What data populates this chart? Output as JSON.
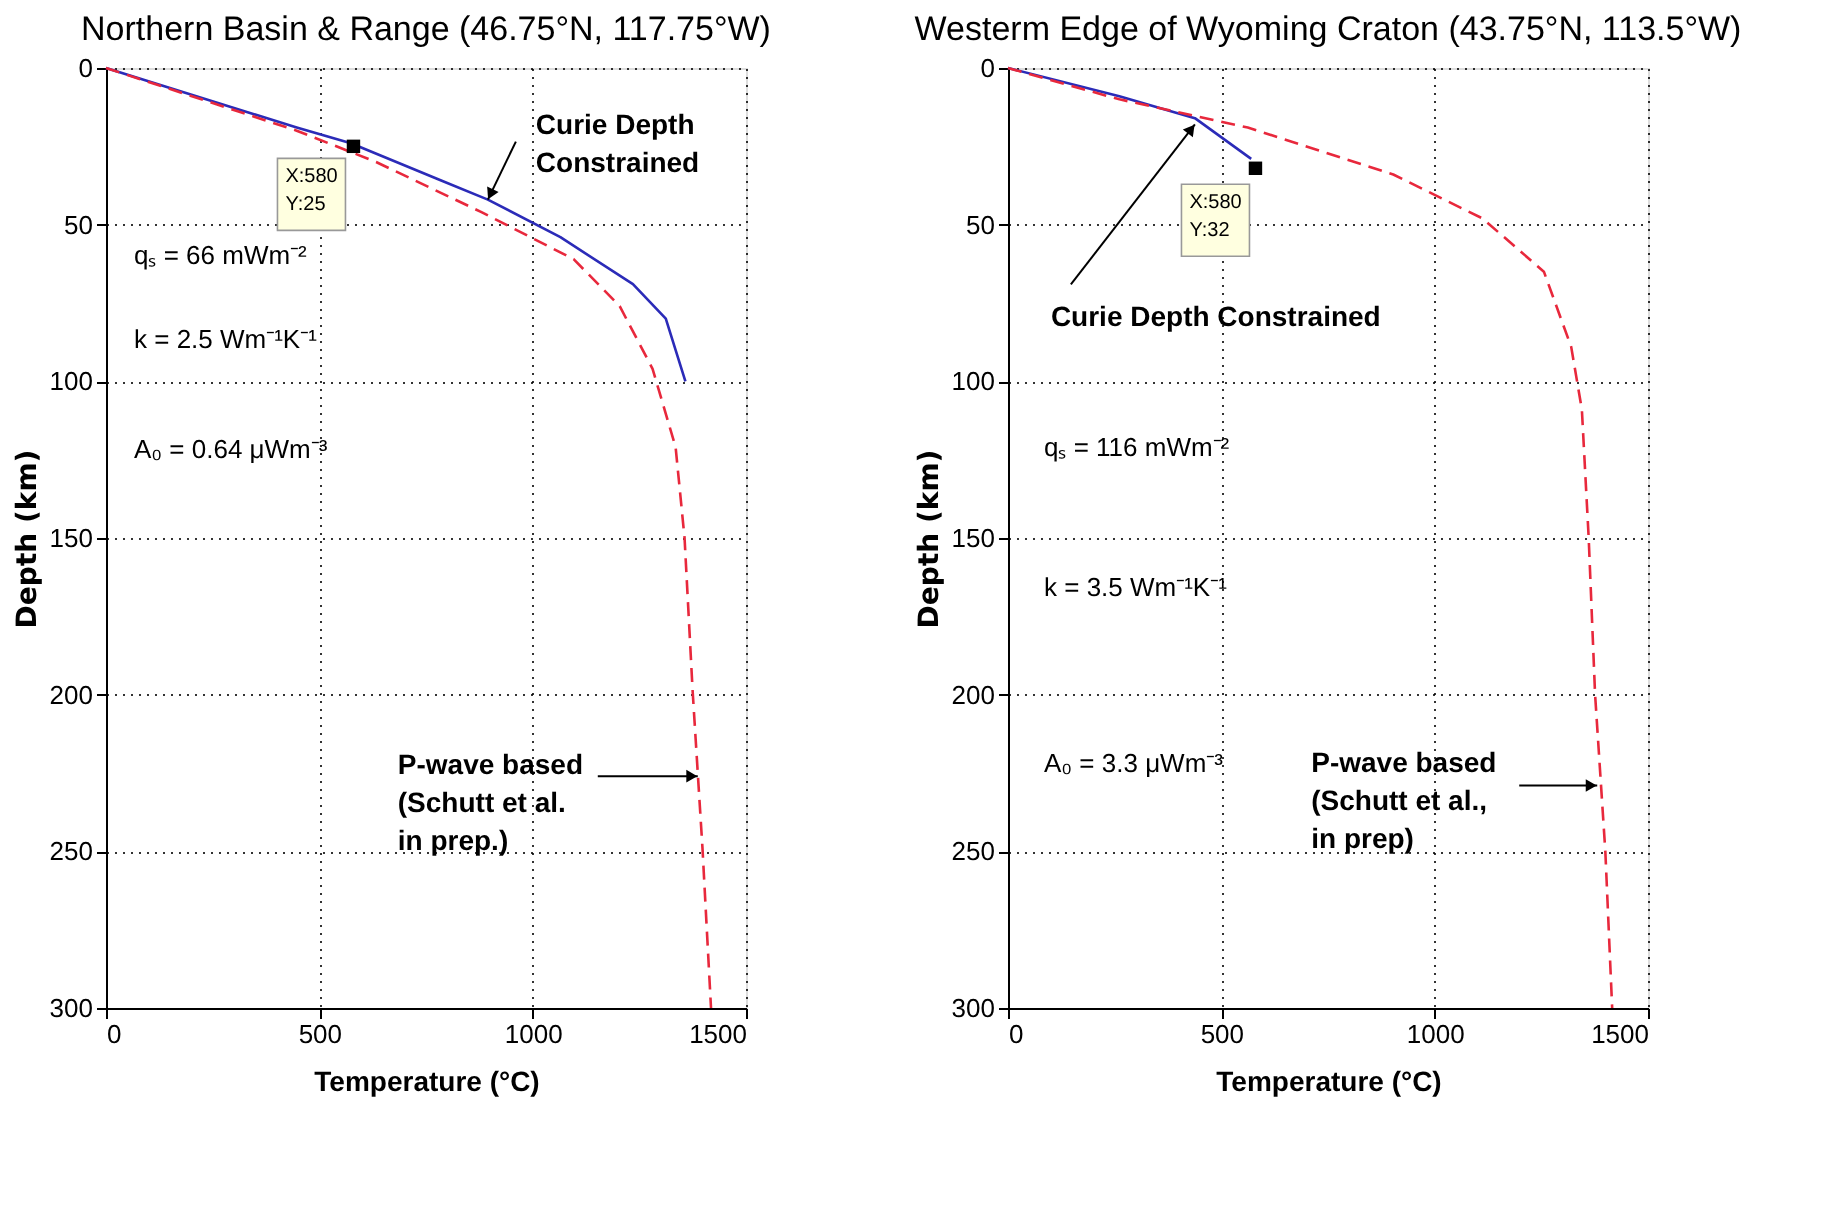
{
  "chart_data": [
    {
      "type": "line",
      "title": "Northern Basin & Range (46.75°N, 117.75°W)",
      "xlabel": "Temperature (°C)",
      "ylabel": "Depth (km)",
      "series": [
        {
          "color": "#2b2bb8",
          "line_style": "solid",
          "x": [
            0,
            447,
            574,
            787,
            895,
            1065,
            1235,
            1312,
            1358
          ],
          "values": [
            0,
            19,
            24,
            36,
            42,
            54,
            69,
            80,
            100
          ]
        },
        {
          "color": "#e8283c",
          "line_style": "dashed",
          "x": [
            0,
            447,
            633,
            880,
            1096,
            1204,
            1281,
            1335,
            1356,
            1375,
            1398,
            1418
          ],
          "values": [
            0,
            20,
            30,
            46,
            61,
            76,
            96,
            121,
            150,
            199,
            249,
            300
          ]
        }
      ],
      "xlim": [
        0,
        1500
      ],
      "ylim": [
        300,
        0
      ],
      "xticks": [
        0,
        500,
        1000,
        1500
      ],
      "yticks": [
        0,
        50,
        100,
        150,
        200,
        250,
        300
      ],
      "grid": true,
      "annotations": [
        {
          "text": "Curie Depth\nConstrained",
          "x": 895,
          "y": 42
        },
        {
          "text": "P-wave based\n(Schutt et al.\n in prep.)",
          "x": 1387,
          "y": 226
        },
        {
          "text": "X:580\nY:25",
          "x": 580,
          "y": 25
        },
        "qₛ = 66 mWm⁻²",
        "k = 2.5 Wm⁻¹K⁻¹",
        "A₀ = 0.64 μWm⁻³"
      ]
    },
    {
      "type": "line",
      "title": "Westerm Edge of Wyoming Craton (43.75°N, 113.5°W)",
      "xlabel": "Temperature (°C)",
      "ylabel": "Depth (km)",
      "series": [
        {
          "color": "#2b2bb8",
          "line_style": "solid",
          "x": [
            0,
            261,
            438,
            570
          ],
          "values": [
            0,
            9,
            16,
            29
          ]
        },
        {
          "color": "#e8283c",
          "line_style": "dashed",
          "x": [
            0,
            261,
            562,
            903,
            1112,
            1256,
            1320,
            1345,
            1361,
            1376,
            1400,
            1416
          ],
          "values": [
            0,
            10,
            19,
            34,
            48,
            65,
            89,
            109,
            150,
            200,
            250,
            300
          ]
        }
      ],
      "xlim": [
        0,
        1500
      ],
      "ylim": [
        300,
        0
      ],
      "xticks": [
        0,
        500,
        1000,
        1500
      ],
      "yticks": [
        0,
        50,
        100,
        150,
        200,
        250,
        300
      ],
      "grid": true,
      "annotations": [
        {
          "text": "Curie Depth Constrained",
          "x": 438,
          "y": 18
        },
        {
          "text": "P-wave based\n(Schutt et al.,\n in prep)",
          "x": 1381,
          "y": 229
        },
        {
          "text": "X:580\nY:32",
          "x": 580,
          "y": 32
        },
        "qₛ = 116 mWm⁻²",
        "k = 3.5 Wm⁻¹K⁻¹",
        "A₀ = 3.3 μWm⁻³"
      ]
    }
  ]
}
